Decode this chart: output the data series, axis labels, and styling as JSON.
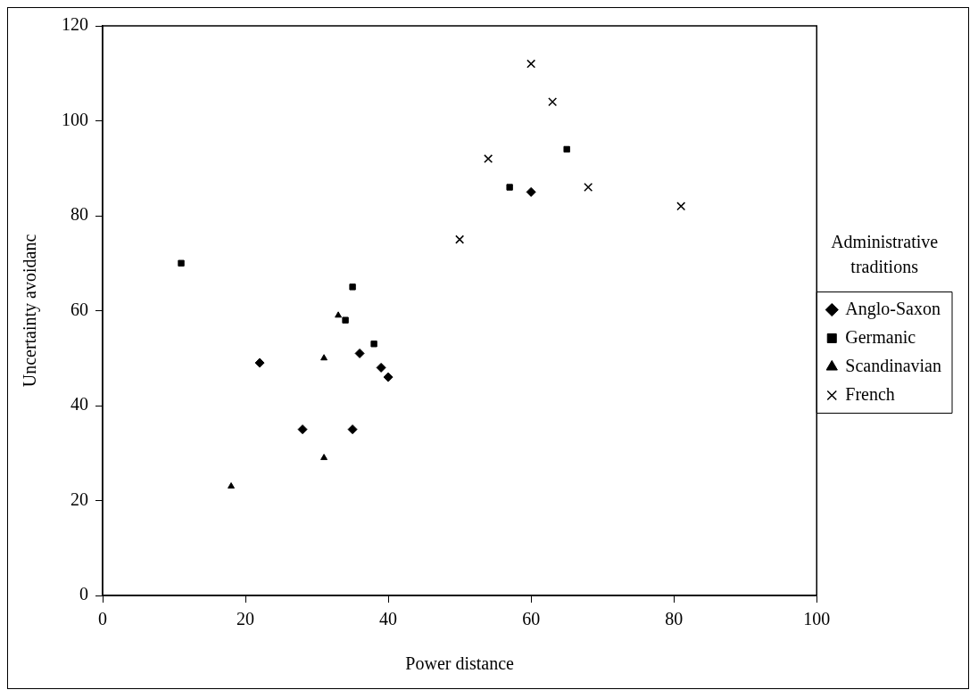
{
  "chart_data": {
    "type": "scatter",
    "xlabel": "Power distance",
    "ylabel": "Uncertainty avoidanc",
    "legend_title": "Administrative traditions",
    "xlim": [
      0,
      100
    ],
    "xticks": [
      0,
      20,
      40,
      60,
      80,
      100
    ],
    "ylim": [
      0,
      120
    ],
    "yticks": [
      0,
      20,
      40,
      60,
      80,
      100,
      120
    ],
    "grid": false,
    "legend": "right",
    "series": [
      {
        "name": "Anglo-Saxon",
        "color": "#000000",
        "marker": "diamond",
        "x": [
          22,
          28,
          35,
          36,
          39,
          40,
          60
        ],
        "values": [
          49,
          35,
          35,
          51,
          48,
          46,
          85
        ]
      },
      {
        "name": "Germanic",
        "color": "#000000",
        "marker": "square",
        "x": [
          11,
          35,
          34,
          38,
          57,
          65
        ],
        "values": [
          70,
          65,
          58,
          53,
          86,
          94
        ]
      },
      {
        "name": "Scandinavian",
        "color": "#000000",
        "marker": "triangle",
        "x": [
          18,
          31,
          31,
          33
        ],
        "values": [
          23,
          29,
          50,
          59
        ]
      },
      {
        "name": "French",
        "color": "#000000",
        "marker": "cross",
        "x": [
          60,
          63,
          54,
          50,
          68,
          81
        ],
        "values": [
          112,
          104,
          92,
          75,
          86,
          82
        ]
      }
    ]
  }
}
